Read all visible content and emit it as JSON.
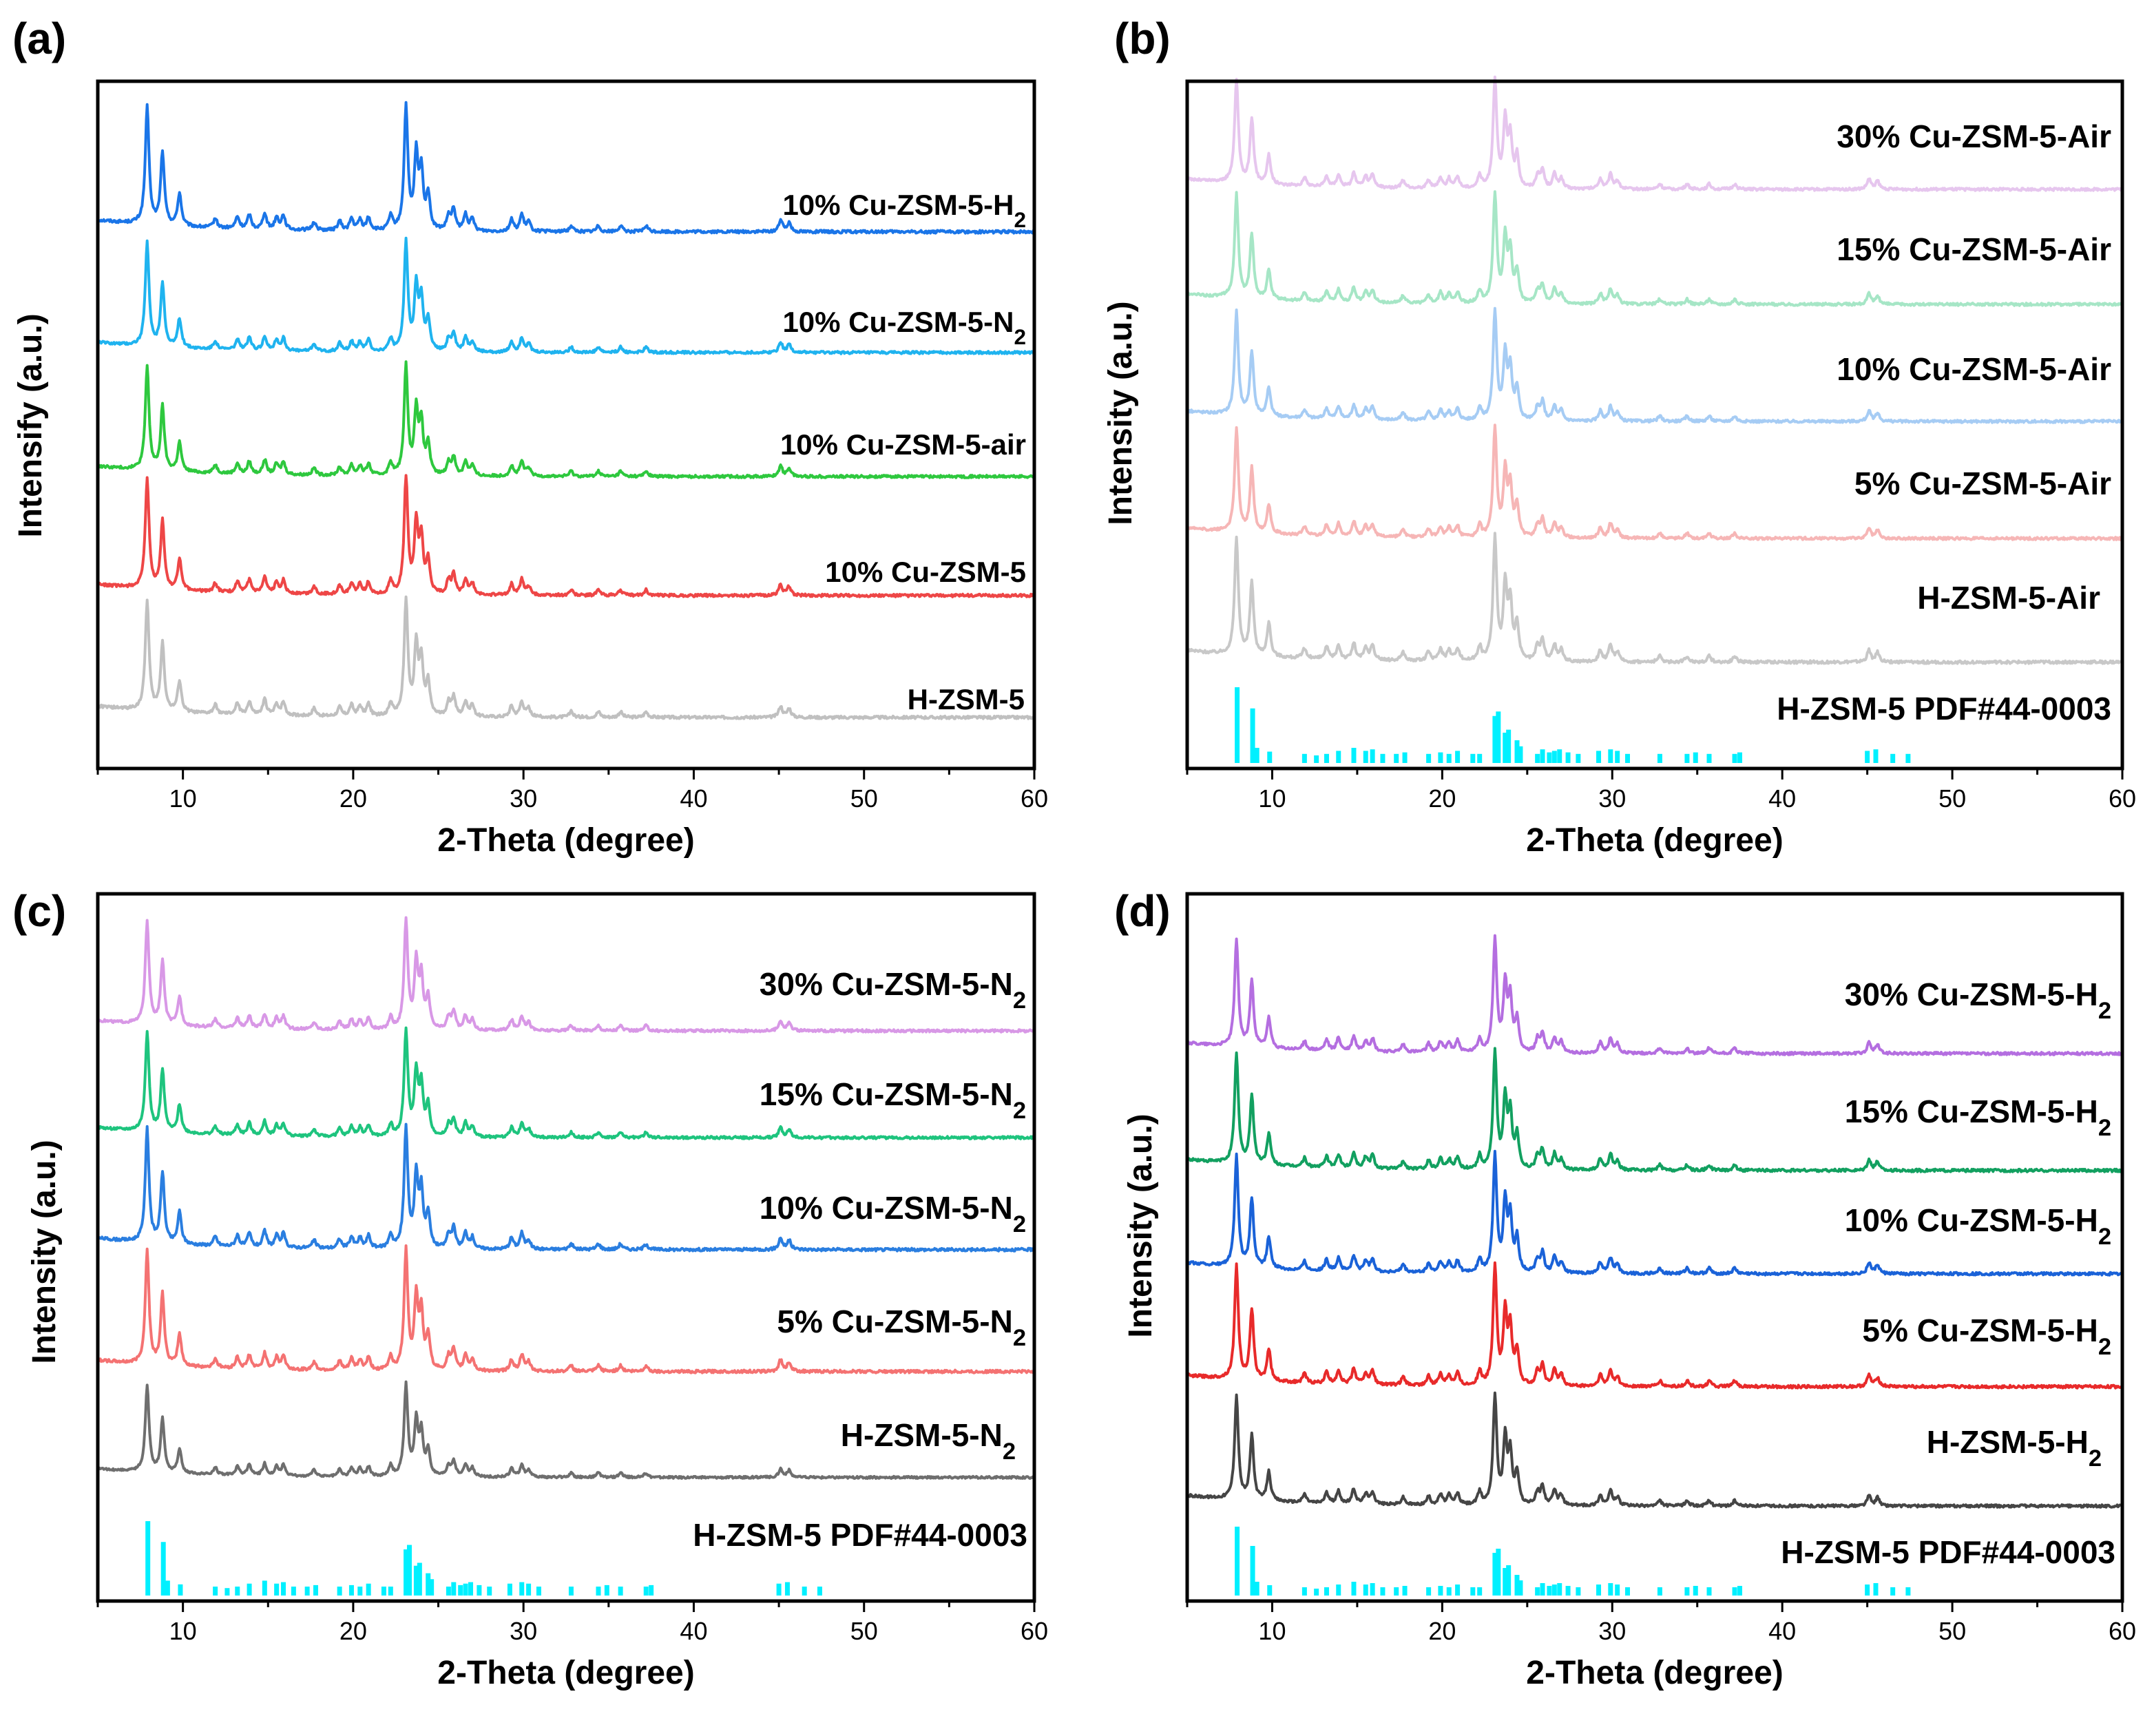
{
  "figure": {
    "reference_color": "#00f0ff"
  },
  "chart_data": [
    {
      "type": "line",
      "panel": "(a)",
      "xlabel": "2-Theta (degree)",
      "ylabel": "Intensify (a.u.)",
      "xlim": [
        5,
        60
      ],
      "xticks": [
        10,
        20,
        30,
        40,
        50,
        60
      ],
      "yticks": "none",
      "series": [
        {
          "name": "10% Cu-ZSM-5-H",
          "sub": "2",
          "color": "#1a75e8"
        },
        {
          "name": "10% Cu-ZSM-5-N",
          "sub": "2",
          "color": "#1fb3ef"
        },
        {
          "name": "10% Cu-ZSM-5-air",
          "sub": "",
          "color": "#2ec83e"
        },
        {
          "name": "10% Cu-ZSM-5",
          "sub": "",
          "color": "#ee4646"
        },
        {
          "name": "H-ZSM-5",
          "sub": "",
          "color": "#c0c0c0"
        }
      ]
    },
    {
      "type": "line",
      "panel": "(b)",
      "xlabel": "2-Theta (degree)",
      "ylabel": "Intensity (a.u.)",
      "xlim": [
        5,
        60
      ],
      "xticks": [
        10,
        20,
        30,
        40,
        50,
        60
      ],
      "yticks": "none",
      "series": [
        {
          "name": "30% Cu-ZSM-5-Air",
          "sub": "",
          "color": "#e6c6ee"
        },
        {
          "name": "15% Cu-ZSM-5-Air",
          "sub": "",
          "color": "#a6e6c6"
        },
        {
          "name": "10% Cu-ZSM-5-Air",
          "sub": "",
          "color": "#a6ccf4"
        },
        {
          "name": "5% Cu-ZSM-5-Air",
          "sub": "",
          "color": "#f6b6b6"
        },
        {
          "name": "H-ZSM-5-Air",
          "sub": "",
          "color": "#c8c8c8"
        }
      ],
      "reference": {
        "name": "H-ZSM-5 PDF#44-0003"
      }
    },
    {
      "type": "line",
      "panel": "(c)",
      "xlabel": "2-Theta (degree)",
      "ylabel": "Intensity (a.u.)",
      "xlim": [
        5,
        60
      ],
      "xticks": [
        10,
        20,
        30,
        40,
        50,
        60
      ],
      "yticks": "none",
      "series": [
        {
          "name": "30% Cu-ZSM-5-N",
          "sub": "2",
          "color": "#d898e6"
        },
        {
          "name": "15% Cu-ZSM-5-N",
          "sub": "2",
          "color": "#1ec47e"
        },
        {
          "name": "10% Cu-ZSM-5-N",
          "sub": "2",
          "color": "#2a7ee0"
        },
        {
          "name": "5% Cu-ZSM-5-N",
          "sub": "2",
          "color": "#f47272"
        },
        {
          "name": "H-ZSM-5-N",
          "sub": "2",
          "color": "#6e6e6e"
        }
      ],
      "reference": {
        "name": "H-ZSM-5 PDF#44-0003"
      }
    },
    {
      "type": "line",
      "panel": "(d)",
      "xlabel": "2-Theta (degree)",
      "ylabel": "Intensity (a.u.)",
      "xlim": [
        5,
        60
      ],
      "xticks": [
        10,
        20,
        30,
        40,
        50,
        60
      ],
      "yticks": "none",
      "series": [
        {
          "name": "30% Cu-ZSM-5-H",
          "sub": "2",
          "color": "#b46ee0"
        },
        {
          "name": "15% Cu-ZSM-5-H",
          "sub": "2",
          "color": "#12a060"
        },
        {
          "name": "10% Cu-ZSM-5-H",
          "sub": "2",
          "color": "#1a62d8"
        },
        {
          "name": "5% Cu-ZSM-5-H",
          "sub": "2",
          "color": "#e82a2a"
        },
        {
          "name": "H-ZSM-5-H",
          "sub": "2",
          "color": "#454545"
        }
      ],
      "reference": {
        "name": "H-ZSM-5 PDF#44-0003"
      }
    }
  ],
  "peaks": [
    [
      7.9,
      1.0
    ],
    [
      8.8,
      0.62
    ],
    [
      9.8,
      0.28
    ],
    [
      11.9,
      0.08
    ],
    [
      13.2,
      0.1
    ],
    [
      13.9,
      0.12
    ],
    [
      14.8,
      0.14
    ],
    [
      15.5,
      0.1
    ],
    [
      15.9,
      0.12
    ],
    [
      17.7,
      0.07
    ],
    [
      19.2,
      0.08
    ],
    [
      19.9,
      0.1
    ],
    [
      20.4,
      0.09
    ],
    [
      20.9,
      0.11
    ],
    [
      22.2,
      0.12
    ],
    [
      23.1,
      1.05
    ],
    [
      23.7,
      0.62
    ],
    [
      24.0,
      0.48
    ],
    [
      24.4,
      0.3
    ],
    [
      25.6,
      0.12
    ],
    [
      25.9,
      0.18
    ],
    [
      26.6,
      0.14
    ],
    [
      27.0,
      0.1
    ],
    [
      29.3,
      0.1
    ],
    [
      29.9,
      0.14
    ],
    [
      30.3,
      0.08
    ],
    [
      32.8,
      0.05
    ],
    [
      34.4,
      0.05
    ],
    [
      35.7,
      0.05
    ],
    [
      37.2,
      0.05
    ],
    [
      45.1,
      0.1
    ],
    [
      45.6,
      0.08
    ]
  ],
  "reference_lines": [
    [
      7.94,
      1.0
    ],
    [
      8.85,
      0.72
    ],
    [
      9.1,
      0.2
    ],
    [
      9.85,
      0.15
    ],
    [
      11.9,
      0.12
    ],
    [
      12.6,
      0.1
    ],
    [
      13.2,
      0.12
    ],
    [
      13.9,
      0.16
    ],
    [
      14.8,
      0.2
    ],
    [
      15.5,
      0.16
    ],
    [
      15.9,
      0.18
    ],
    [
      16.5,
      0.12
    ],
    [
      17.3,
      0.12
    ],
    [
      17.8,
      0.14
    ],
    [
      19.2,
      0.12
    ],
    [
      19.9,
      0.14
    ],
    [
      20.4,
      0.12
    ],
    [
      20.9,
      0.16
    ],
    [
      21.8,
      0.12
    ],
    [
      22.2,
      0.12
    ],
    [
      23.1,
      0.62
    ],
    [
      23.3,
      0.68
    ],
    [
      23.7,
      0.4
    ],
    [
      23.9,
      0.44
    ],
    [
      24.4,
      0.3
    ],
    [
      24.6,
      0.22
    ],
    [
      25.6,
      0.12
    ],
    [
      25.9,
      0.18
    ],
    [
      26.3,
      0.14
    ],
    [
      26.6,
      0.16
    ],
    [
      26.9,
      0.18
    ],
    [
      27.4,
      0.14
    ],
    [
      28.0,
      0.12
    ],
    [
      29.2,
      0.16
    ],
    [
      29.9,
      0.18
    ],
    [
      30.3,
      0.16
    ],
    [
      30.9,
      0.12
    ],
    [
      32.8,
      0.12
    ],
    [
      34.4,
      0.12
    ],
    [
      34.9,
      0.14
    ],
    [
      35.7,
      0.12
    ],
    [
      37.2,
      0.12
    ],
    [
      37.5,
      0.14
    ],
    [
      45.0,
      0.16
    ],
    [
      45.5,
      0.18
    ],
    [
      46.5,
      0.12
    ],
    [
      47.4,
      0.12
    ]
  ]
}
